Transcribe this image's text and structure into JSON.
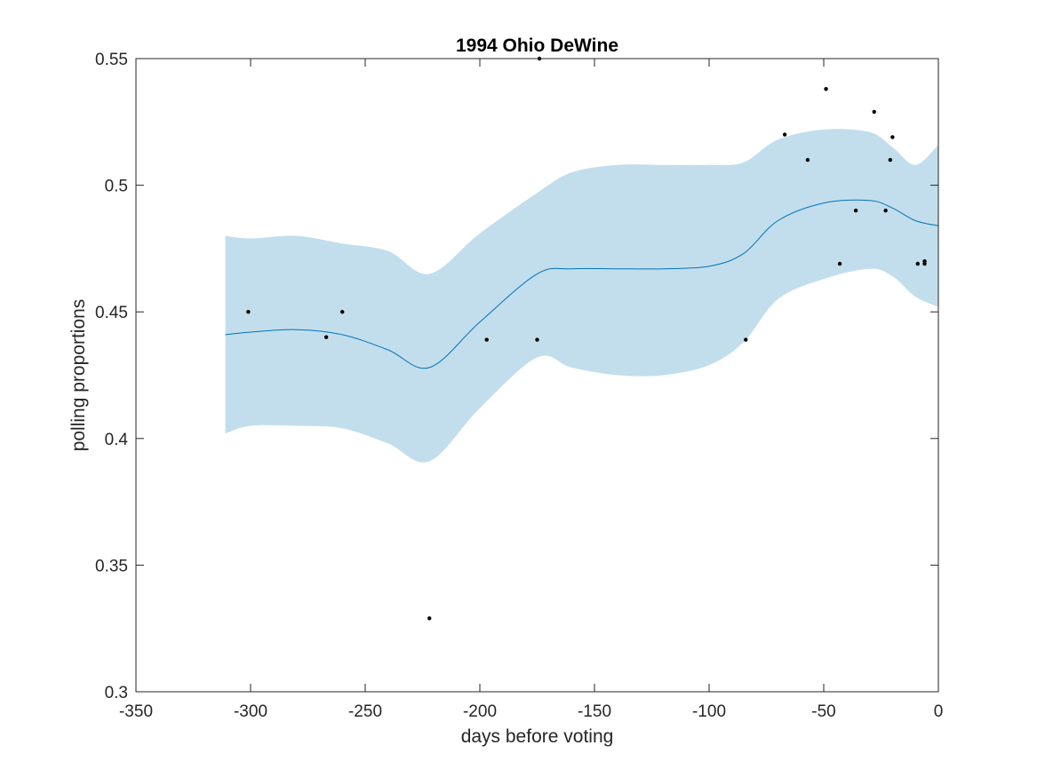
{
  "chart_data": {
    "type": "scatter",
    "title": "1994 Ohio DeWine",
    "xlabel": "days before voting",
    "ylabel": "polling proportions",
    "xlim": [
      -350,
      0
    ],
    "ylim": [
      0.3,
      0.55
    ],
    "xticks": [
      -350,
      -300,
      -250,
      -200,
      -150,
      -100,
      -50,
      0
    ],
    "yticks": [
      0.3,
      0.35,
      0.4,
      0.45,
      0.5,
      0.55
    ],
    "grid": false,
    "colors": {
      "band": "#c2deec",
      "mean": "#0072bd",
      "points": "#000000",
      "axis": "#262626"
    },
    "band": {
      "x": [
        -311,
        -300,
        -280,
        -260,
        -240,
        -222,
        -200,
        -175,
        -160,
        -140,
        -120,
        -100,
        -85,
        -70,
        -50,
        -30,
        -20,
        -10,
        0
      ],
      "upper": [
        0.48,
        0.479,
        0.48,
        0.477,
        0.474,
        0.465,
        0.481,
        0.497,
        0.505,
        0.508,
        0.508,
        0.508,
        0.509,
        0.518,
        0.522,
        0.521,
        0.515,
        0.508,
        0.516
      ],
      "lower": [
        0.402,
        0.405,
        0.405,
        0.404,
        0.398,
        0.391,
        0.412,
        0.432,
        0.428,
        0.425,
        0.425,
        0.429,
        0.438,
        0.455,
        0.463,
        0.467,
        0.464,
        0.456,
        0.452
      ]
    },
    "mean": {
      "x": [
        -311,
        -300,
        -280,
        -260,
        -240,
        -222,
        -200,
        -175,
        -160,
        -140,
        -120,
        -100,
        -85,
        -70,
        -50,
        -30,
        -20,
        -10,
        0
      ],
      "y": [
        0.441,
        0.442,
        0.443,
        0.441,
        0.435,
        0.428,
        0.446,
        0.465,
        0.467,
        0.467,
        0.467,
        0.468,
        0.473,
        0.486,
        0.493,
        0.494,
        0.491,
        0.486,
        0.484
      ]
    },
    "points": {
      "x": [
        -301,
        -267,
        -260,
        -222,
        -197,
        -175,
        -174,
        -84,
        -67,
        -57,
        -49,
        -43,
        -36,
        -28,
        -23,
        -21,
        -20,
        -9,
        -6,
        -6
      ],
      "y": [
        0.45,
        0.44,
        0.45,
        0.329,
        0.439,
        0.439,
        0.55,
        0.439,
        0.52,
        0.51,
        0.538,
        0.469,
        0.49,
        0.529,
        0.49,
        0.51,
        0.519,
        0.469,
        0.47,
        0.469
      ]
    }
  }
}
